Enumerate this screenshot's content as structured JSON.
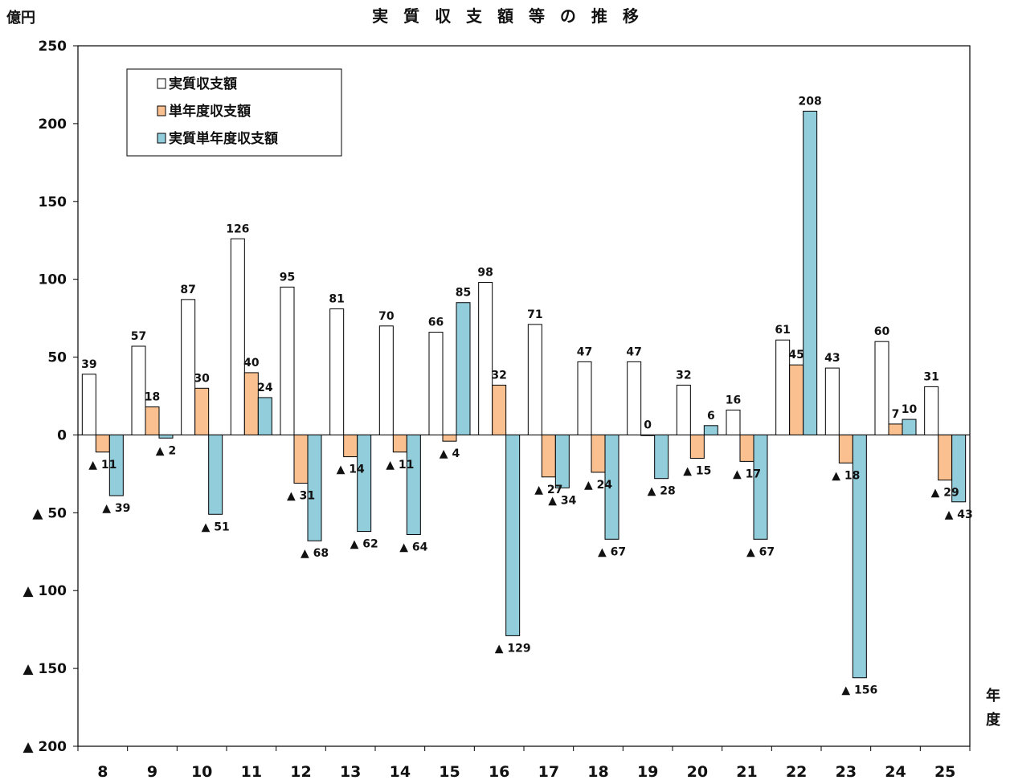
{
  "chart_data": {
    "type": "bar",
    "title": "実 質 収 支 額 等 の 推 移",
    "ylabel": "億円",
    "xlabel": "年度",
    "ylim": [
      -200,
      250
    ],
    "yticks": [
      250,
      200,
      150,
      100,
      50,
      0,
      -50,
      -100,
      -150,
      -200
    ],
    "ytick_labels": [
      "250",
      "200",
      "150",
      "100",
      "50",
      "0",
      "▲ 50",
      "▲ 100",
      "▲ 150",
      "▲ 200"
    ],
    "categories": [
      "8",
      "9",
      "10",
      "11",
      "12",
      "13",
      "14",
      "15",
      "16",
      "17",
      "18",
      "19",
      "20",
      "21",
      "22",
      "23",
      "24",
      "25"
    ],
    "legend_position": "top-left",
    "grid": false,
    "series": [
      {
        "name": "実質収支額",
        "color": "#ffffff",
        "values": [
          39,
          57,
          87,
          126,
          95,
          81,
          70,
          66,
          98,
          71,
          47,
          47,
          32,
          16,
          61,
          43,
          60,
          31
        ],
        "labels": [
          "39",
          "57",
          "87",
          "126",
          "95",
          "81",
          "70",
          "66",
          "98",
          "71",
          "47",
          "47",
          "32",
          "16",
          "61",
          "43",
          "60",
          "31"
        ]
      },
      {
        "name": "単年度収支額",
        "color": "#fac090",
        "values": [
          -11,
          18,
          30,
          40,
          -31,
          -14,
          -11,
          -4,
          32,
          -27,
          -24,
          0,
          -15,
          -17,
          45,
          -18,
          7,
          -29
        ],
        "labels": [
          "▲ 11",
          "18",
          "30",
          "40",
          "▲ 31",
          "▲ 14",
          "▲ 11",
          "▲ 4",
          "32",
          "▲ 27",
          "▲ 24",
          "0",
          "▲ 15",
          "▲ 17",
          "45",
          "▲ 18",
          "7",
          "▲ 29"
        ]
      },
      {
        "name": "実質単年度収支額",
        "color": "#92cddc",
        "values": [
          -39,
          -2,
          -51,
          24,
          -68,
          -62,
          -64,
          85,
          -129,
          -34,
          -67,
          -28,
          6,
          -67,
          208,
          -156,
          10,
          -43
        ],
        "labels": [
          "▲ 39",
          "▲ 2",
          "▲ 51",
          "24",
          "▲ 68",
          "▲ 62",
          "▲ 64",
          "85",
          "▲ 129",
          "▲ 34",
          "▲ 67",
          "▲ 28",
          "6",
          "▲ 67",
          "208",
          "▲ 156",
          "10",
          "▲ 43"
        ]
      }
    ]
  }
}
